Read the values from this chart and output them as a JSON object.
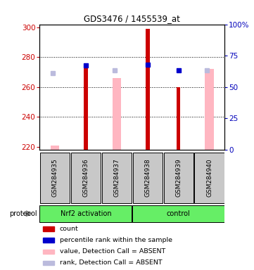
{
  "title": "GDS3476 / 1455539_at",
  "samples": [
    "GSM284935",
    "GSM284936",
    "GSM284937",
    "GSM284938",
    "GSM284939",
    "GSM284940"
  ],
  "groups": [
    {
      "label": "Nrf2 activation",
      "color": "#66EE66",
      "start": 0,
      "end": 2
    },
    {
      "label": "control",
      "color": "#66EE66",
      "start": 3,
      "end": 5
    }
  ],
  "ylim_left": [
    218,
    302
  ],
  "ylim_right": [
    0,
    100
  ],
  "yticks_left": [
    220,
    240,
    260,
    280,
    300
  ],
  "yticks_right": [
    0,
    25,
    50,
    75,
    100
  ],
  "ytick_labels_right": [
    "0",
    "25",
    "50",
    "75",
    "100%"
  ],
  "bar_bottom": 218,
  "red_bars_present": [
    false,
    true,
    false,
    true,
    true,
    false
  ],
  "red_bars_tops": [
    218,
    274,
    218,
    299,
    260,
    218
  ],
  "pink_bars_present": [
    true,
    false,
    true,
    false,
    false,
    true
  ],
  "pink_bars_tops": [
    221,
    218,
    266,
    218,
    218,
    272
  ],
  "blue_sq_present": [
    false,
    true,
    false,
    true,
    true,
    false
  ],
  "blue_sq_values": [
    0,
    274.5,
    0,
    275,
    271,
    0
  ],
  "lbsq_present": [
    true,
    false,
    true,
    false,
    false,
    true
  ],
  "lbsq_values": [
    269.5,
    0,
    271,
    0,
    0,
    271
  ],
  "red_color": "#CC0000",
  "pink_color": "#FFB6C1",
  "blue_color": "#0000CC",
  "lbsq_color": "#BBBBDD",
  "left_axis_color": "#CC0000",
  "right_axis_color": "#0000BB",
  "sample_box_color": "#C8C8C8",
  "grid_color": "black",
  "protocol_label": "protocol",
  "legend_labels": [
    "count",
    "percentile rank within the sample",
    "value, Detection Call = ABSENT",
    "rank, Detection Call = ABSENT"
  ],
  "legend_colors": [
    "#CC0000",
    "#0000CC",
    "#FFB6C1",
    "#BBBBDD"
  ]
}
